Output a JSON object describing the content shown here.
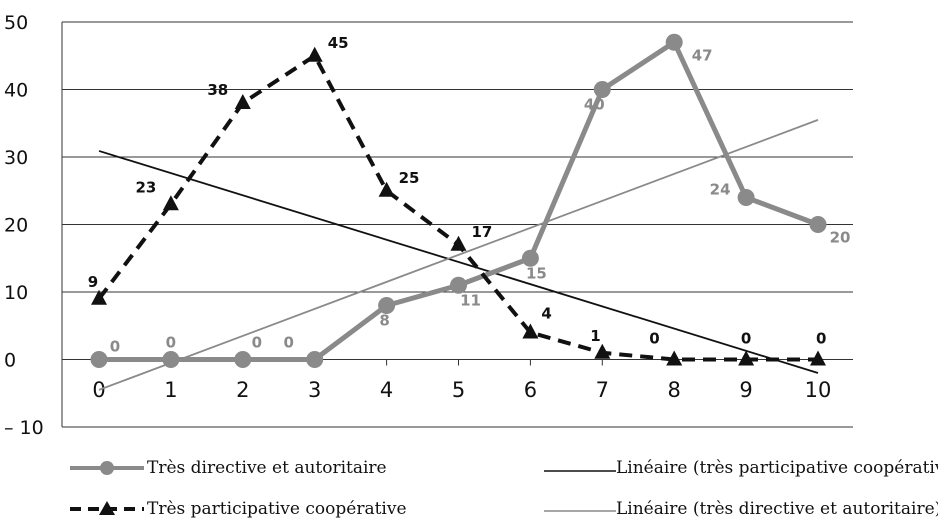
{
  "chart_data": {
    "type": "line",
    "x": [
      0,
      1,
      2,
      3,
      4,
      5,
      6,
      7,
      8,
      9,
      10
    ],
    "ylim": [
      -10,
      50
    ],
    "yticks": [
      -10,
      0,
      10,
      20,
      30,
      40,
      50
    ],
    "ytick_labels": [
      "– 10",
      "0",
      "10",
      "20",
      "30",
      "40",
      "50"
    ],
    "xticks": [
      0,
      1,
      2,
      3,
      4,
      5,
      6,
      7,
      8,
      9,
      10
    ],
    "grid": "horizontal",
    "legend_position": "bottom",
    "series": [
      {
        "name": "Très directive et autoritaire",
        "style": "solid-circle",
        "color": "#8a8a8a",
        "values": [
          0,
          0,
          0,
          0,
          8,
          11,
          15,
          40,
          47,
          24,
          20
        ],
        "labels": [
          "0",
          "0",
          "0",
          "0",
          "8",
          "11",
          "15",
          "40",
          "47",
          "24",
          "20"
        ]
      },
      {
        "name": "Très participative coopérative",
        "style": "dashed-triangle",
        "color": "#111111",
        "values": [
          9,
          23,
          38,
          45,
          25,
          17,
          4,
          1,
          0,
          0,
          0
        ],
        "labels": [
          "9",
          "23",
          "38",
          "45",
          "25",
          "17",
          "4",
          "1",
          "0",
          "0",
          "0"
        ]
      }
    ],
    "trendlines": [
      {
        "name": "Linéaire (très participative coopérative)",
        "color": "#111111",
        "x": [
          0,
          10
        ],
        "y": [
          30.9,
          -2.0
        ]
      },
      {
        "name": "Linéaire (très directive et autoritaire)",
        "color": "#8a8a8a",
        "x": [
          0,
          10
        ],
        "y": [
          -4.5,
          35.5
        ]
      }
    ]
  },
  "legend": {
    "series1": "Très directive et autoritaire",
    "series2": "Très participative coopérative",
    "trend1": "Linéaire (très participative coopérative)",
    "trend2": "Linéaire (très directive et autoritaire)"
  },
  "colors": {
    "grid": "#333333",
    "series1": "#8a8a8a",
    "series2": "#111111",
    "trend1": "#111111",
    "trend2": "#8a8a8a"
  }
}
